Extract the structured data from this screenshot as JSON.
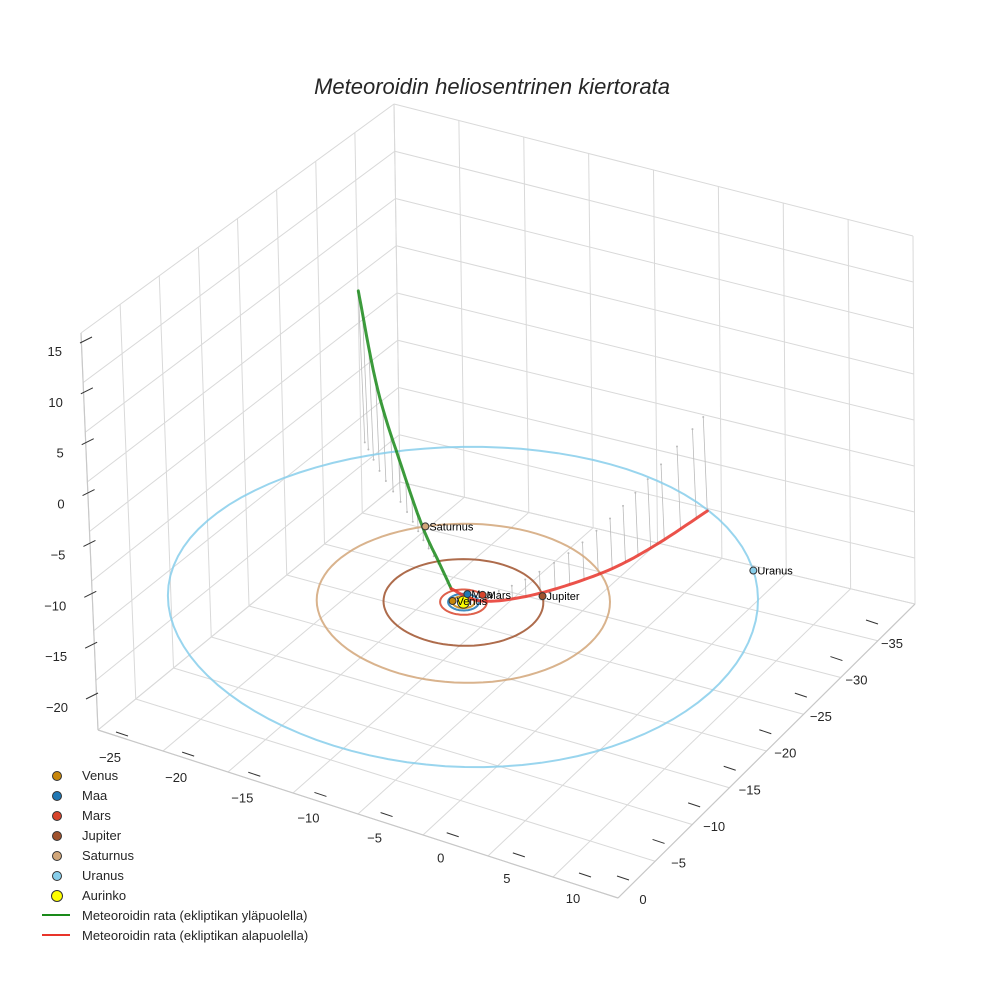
{
  "chart_data": {
    "type": "line",
    "title": "Meteoroidin heliosentrinen kiertorata",
    "x_ticks": [
      "−25",
      "−20",
      "−15",
      "−10",
      "−5",
      "0",
      "5",
      "10"
    ],
    "y_ticks": [
      "−35",
      "−30",
      "−25",
      "−20",
      "−15",
      "−10",
      "−5",
      "0"
    ],
    "z_ticks": [
      "15",
      "10",
      "5",
      "0",
      "−5",
      "−10",
      "−15",
      "−20"
    ],
    "xlim": [
      -27,
      12
    ],
    "ylim": [
      -37,
      2
    ],
    "zlim": [
      -22,
      16
    ],
    "grid": true,
    "legend_position": "bottom-left",
    "sun": {
      "name": "Aurinko",
      "color": "#ffff00"
    },
    "planets": [
      {
        "name": "Venus",
        "color": "#c8860a",
        "radius": 0.72,
        "angle_deg": 160
      },
      {
        "name": "Maa",
        "color": "#1f77b4",
        "radius": 1.0,
        "angle_deg": 255
      },
      {
        "name": "Mars",
        "color": "#d8442b",
        "radius": 1.52,
        "angle_deg": 295
      },
      {
        "name": "Jupiter",
        "color": "#a0522d",
        "radius": 5.2,
        "angle_deg": 322
      },
      {
        "name": "Saturnus",
        "color": "#d2a679",
        "radius": 9.54,
        "angle_deg": 225
      },
      {
        "name": "Uranus",
        "color": "#87ceeb",
        "radius": 19.2,
        "angle_deg": 320
      }
    ],
    "series": [
      {
        "name": "Meteoroidin rata (ekliptikan yläpuolella)",
        "color": "#1a8a1a",
        "points": [
          [
            -15.5,
            -14.0,
            14.5
          ],
          [
            -12.5,
            -11.0,
            8.0
          ],
          [
            -9.0,
            -8.0,
            3.5
          ],
          [
            -6.0,
            -5.2,
            1.2
          ],
          [
            -3.5,
            -3.0,
            0.2
          ],
          [
            -1.5,
            -1.0,
            0.0
          ]
        ]
      },
      {
        "name": "Meteoroidin rata (ekliptikan alapuolella)",
        "color": "#e8342a",
        "points": [
          [
            -1.5,
            -1.0,
            0.0
          ],
          [
            0.5,
            -1.2,
            -0.5
          ],
          [
            2.0,
            -4.0,
            -1.5
          ],
          [
            3.0,
            -8.5,
            -3.0
          ],
          [
            3.3,
            -14.0,
            -5.0
          ],
          [
            3.0,
            -20.0,
            -7.0
          ],
          [
            2.5,
            -27.0,
            -9.0
          ]
        ]
      }
    ],
    "legend": [
      "Venus",
      "Maa",
      "Mars",
      "Jupiter",
      "Saturnus",
      "Uranus",
      "Aurinko",
      "Meteoroidin rata (ekliptikan yläpuolella)",
      "Meteoroidin rata (ekliptikan alapuolella)"
    ]
  }
}
